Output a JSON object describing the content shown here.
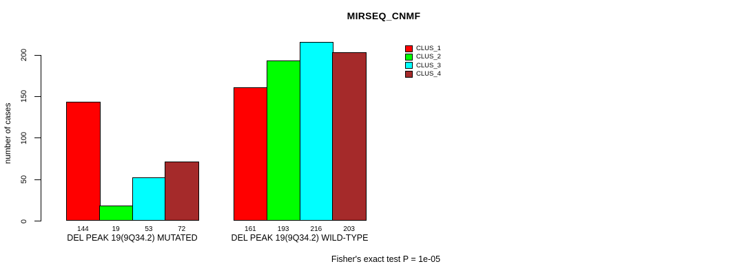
{
  "chart_data": {
    "type": "bar",
    "title": "MIRSEQ_CNMF",
    "ylabel": "number of cases",
    "xlabel": "",
    "ylim": [
      0,
      200
    ],
    "yticks": [
      0,
      50,
      100,
      150,
      200
    ],
    "grid": false,
    "legend_position": "top-right-inside",
    "categories": [
      "DEL PEAK 19(9Q34.2) MUTATED",
      "DEL PEAK 19(9Q34.2) WILD-TYPE"
    ],
    "series": [
      {
        "name": "CLUS_1",
        "color": "#FF0000",
        "values": [
          144,
          161
        ]
      },
      {
        "name": "CLUS_2",
        "color": "#00FF00",
        "values": [
          19,
          193
        ]
      },
      {
        "name": "CLUS_3",
        "color": "#00FFFF",
        "values": [
          53,
          216
        ]
      },
      {
        "name": "CLUS_4",
        "color": "#A52A2A",
        "values": [
          72,
          203
        ]
      }
    ],
    "bar_values_shown_below_bars": true,
    "annotation": "Fisher's exact test P = 1e-05"
  },
  "colors": {
    "background": "#FFFFFF",
    "axis": "#000000",
    "text": "#000000"
  }
}
